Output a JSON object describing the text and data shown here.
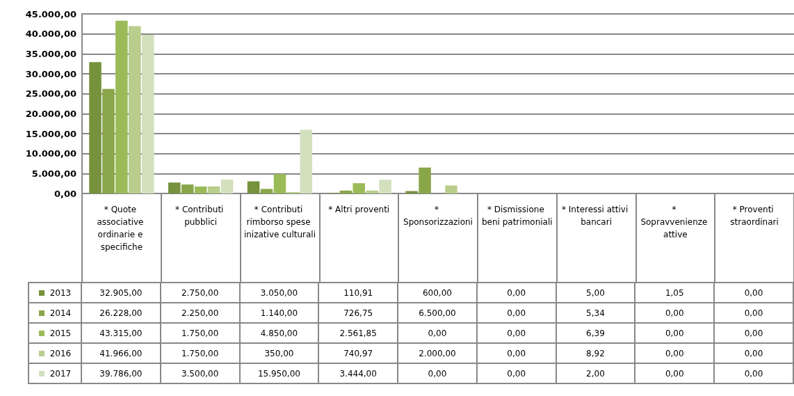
{
  "chart_data": {
    "type": "bar",
    "categories": [
      "* Quote associative ordinarie e specifiche",
      "* Contributi pubblici",
      "* Contributi rimborso spese inizative culturali",
      "* Altri proventi",
      "* Sponsorizzazioni",
      "* Dismissione beni patrimoniali",
      "* Interessi attivi bancari",
      "* Sopravvenienze attive",
      "* Proventi straordinari"
    ],
    "series": [
      {
        "name": "2013",
        "color": "#76923c",
        "values": [
          32905,
          2750,
          3050,
          110.91,
          600,
          0,
          5,
          1.05,
          0
        ],
        "value_labels": [
          "32.905,00",
          "2.750,00",
          "3.050,00",
          "110,91",
          "600,00",
          "0,00",
          "5,00",
          "1,05",
          "0,00"
        ]
      },
      {
        "name": "2014",
        "color": "#8aa64a",
        "values": [
          26228,
          2250,
          1140,
          726.75,
          6500,
          0,
          5.34,
          0,
          0
        ],
        "value_labels": [
          "26.228,00",
          "2.250,00",
          "1.140,00",
          "726,75",
          "6.500,00",
          "0,00",
          "5,34",
          "0,00",
          "0,00"
        ]
      },
      {
        "name": "2015",
        "color": "#9bbb59",
        "values": [
          43315,
          1750,
          4850,
          2561.85,
          0,
          0,
          6.39,
          0,
          0
        ],
        "value_labels": [
          "43.315,00",
          "1.750,00",
          "4.850,00",
          "2.561,85",
          "0,00",
          "0,00",
          "6,39",
          "0,00",
          "0,00"
        ]
      },
      {
        "name": "2016",
        "color": "#b9cd8c",
        "values": [
          41966,
          1750,
          350,
          740.97,
          2000,
          0,
          8.92,
          0,
          0
        ],
        "value_labels": [
          "41.966,00",
          "1.750,00",
          "350,00",
          "740,97",
          "2.000,00",
          "0,00",
          "8,92",
          "0,00",
          "0,00"
        ]
      },
      {
        "name": "2017",
        "color": "#d3e0bd",
        "values": [
          39786,
          3500,
          15950,
          3444,
          0,
          0,
          2,
          0,
          0
        ],
        "value_labels": [
          "39.786,00",
          "3.500,00",
          "15.950,00",
          "3.444,00",
          "0,00",
          "0,00",
          "2,00",
          "0,00",
          "0,00"
        ]
      }
    ],
    "ylim": [
      0,
      45000
    ],
    "yticks": [
      {
        "value": 0,
        "label": "0,00"
      },
      {
        "value": 5000,
        "label": "5.000,00"
      },
      {
        "value": 10000,
        "label": "10.000,00"
      },
      {
        "value": 15000,
        "label": "15.000,00"
      },
      {
        "value": 20000,
        "label": "20.000,00"
      },
      {
        "value": 25000,
        "label": "25.000,00"
      },
      {
        "value": 30000,
        "label": "30.000,00"
      },
      {
        "value": 35000,
        "label": "35.000,00"
      },
      {
        "value": 40000,
        "label": "40.000,00"
      },
      {
        "value": 45000,
        "label": "45.000,00"
      }
    ],
    "grid": "y",
    "legend": "bottom left"
  }
}
